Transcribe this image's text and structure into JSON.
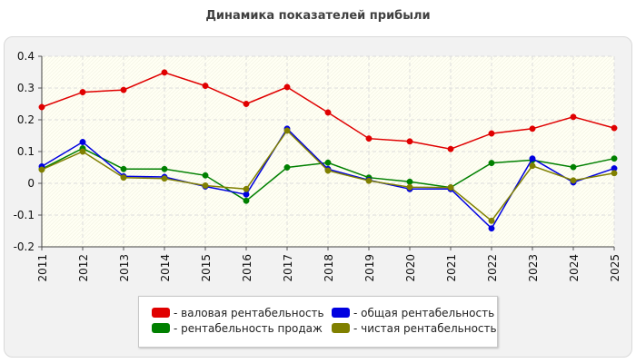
{
  "chart_data": {
    "type": "line",
    "title": "Динамика показателей прибыли",
    "xlabel": "",
    "ylabel": "",
    "categories": [
      "2011",
      "2012",
      "2013",
      "2014",
      "2015",
      "2016",
      "2017",
      "2018",
      "2019",
      "2020",
      "2021",
      "2022",
      "2023",
      "2024",
      "2025"
    ],
    "ylim": [
      -0.2,
      0.4
    ],
    "yticks": [
      -0.2,
      -0.1,
      0,
      0.1,
      0.2,
      0.3,
      0.4
    ],
    "ytick_labels": [
      "-0.2",
      "-0.1",
      "0",
      "0.1",
      "0.2",
      "0.3",
      "0.4"
    ],
    "grid": true,
    "legend_position": "bottom-center",
    "series": [
      {
        "name": "- валовая рентабельность",
        "color": "#e00000",
        "values": [
          0.24,
          0.287,
          0.294,
          0.349,
          0.307,
          0.25,
          0.303,
          0.223,
          0.141,
          0.132,
          0.108,
          0.157,
          0.172,
          0.209,
          0.174
        ]
      },
      {
        "name": "- общая рентабельность",
        "color": "#0000e0",
        "values": [
          0.053,
          0.13,
          0.022,
          0.02,
          -0.01,
          -0.035,
          0.172,
          0.045,
          0.01,
          -0.018,
          -0.018,
          -0.142,
          0.078,
          0.003,
          0.047
        ]
      },
      {
        "name": "- рентабельность продаж",
        "color": "#008000",
        "values": [
          0.045,
          0.11,
          0.045,
          0.045,
          0.025,
          -0.055,
          0.05,
          0.065,
          0.018,
          0.005,
          -0.013,
          0.064,
          0.073,
          0.051,
          0.078
        ]
      },
      {
        "name": "- чистая рентабельность",
        "color": "#808000",
        "values": [
          0.043,
          0.1,
          0.018,
          0.015,
          -0.007,
          -0.018,
          0.166,
          0.04,
          0.008,
          -0.012,
          -0.013,
          -0.118,
          0.055,
          0.009,
          0.032
        ]
      }
    ],
    "legend_order": [
      0,
      1,
      2,
      3
    ]
  }
}
